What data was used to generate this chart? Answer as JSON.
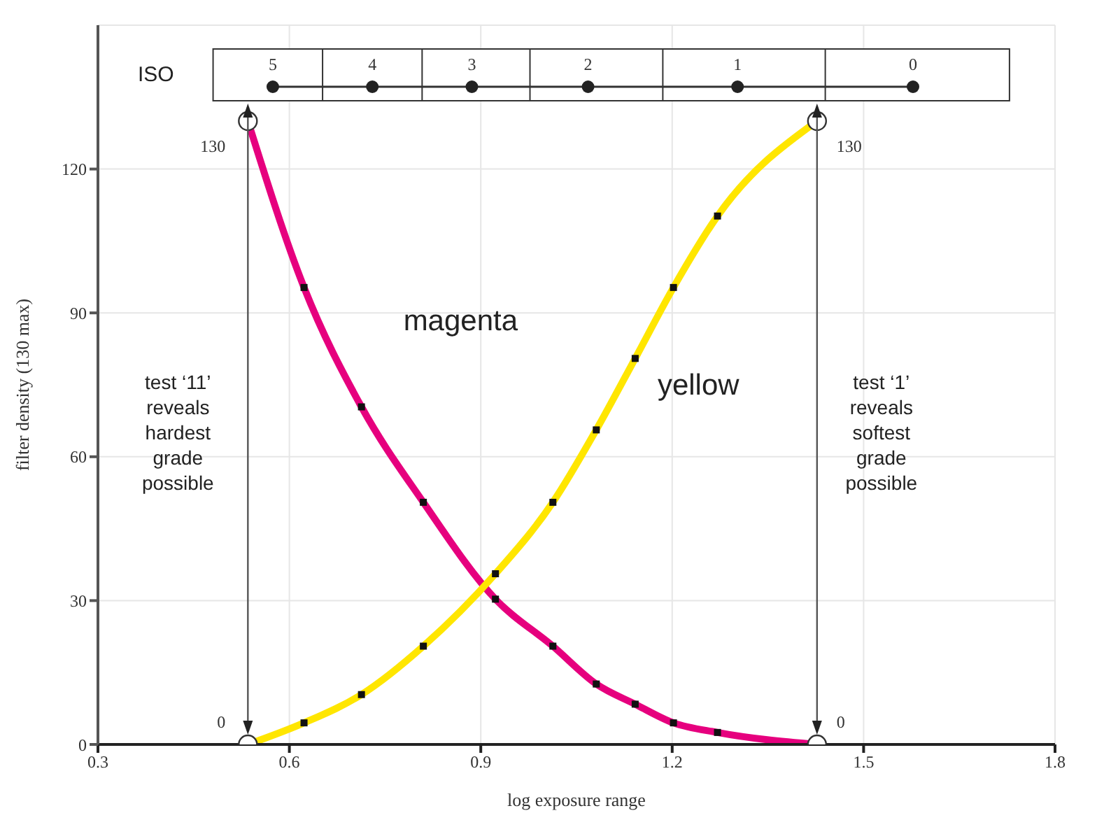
{
  "chart_data": {
    "type": "line",
    "xlabel": "log exposure range",
    "ylabel": "filter density (130 max)",
    "xlim": [
      0.3,
      1.8
    ],
    "xticks": [
      0.3,
      0.6,
      0.9,
      1.2,
      1.5,
      1.8
    ],
    "ylim": [
      0,
      150
    ],
    "yticks": [
      0,
      30,
      60,
      90,
      120
    ],
    "grid": true,
    "marker": "square",
    "line_style": "solid",
    "series": [
      {
        "name": "magenta",
        "color": "#e6007e",
        "x": [
          0.535,
          0.623,
          0.713,
          0.81,
          0.923,
          1.013,
          1.081,
          1.142,
          1.202,
          1.271,
          1.427
        ],
        "values": [
          130,
          95.3,
          70.4,
          50.5,
          30.3,
          20.5,
          12.6,
          8.4,
          4.5,
          2.5,
          0
        ]
      },
      {
        "name": "yellow",
        "color": "#ffe600",
        "x": [
          0.535,
          0.623,
          0.713,
          0.81,
          0.923,
          1.013,
          1.081,
          1.142,
          1.202,
          1.271,
          1.427
        ],
        "values": [
          0,
          4.5,
          10.4,
          20.5,
          35.6,
          50.5,
          65.6,
          80.5,
          95.3,
          110.2,
          130
        ]
      },
      {
        "type": "scatter",
        "marker": "circle",
        "color": "#ffffff",
        "x": [
          0.535,
          0.535,
          1.427,
          1.427
        ],
        "values": [
          130,
          0,
          130,
          0
        ]
      }
    ],
    "ref_lines": [
      {
        "axis": "x",
        "value": 0.535,
        "label": "test ‘11’ reveals hardest grade possible",
        "color": "#555555"
      },
      {
        "axis": "x",
        "value": 1.427,
        "label": "test ‘1’ reveals softest grade possible",
        "color": "#555555"
      }
    ],
    "annotations": [
      "ISO",
      "5",
      "4",
      "3",
      "2",
      "1",
      "0",
      "130",
      "0",
      "130",
      "0"
    ]
  }
}
